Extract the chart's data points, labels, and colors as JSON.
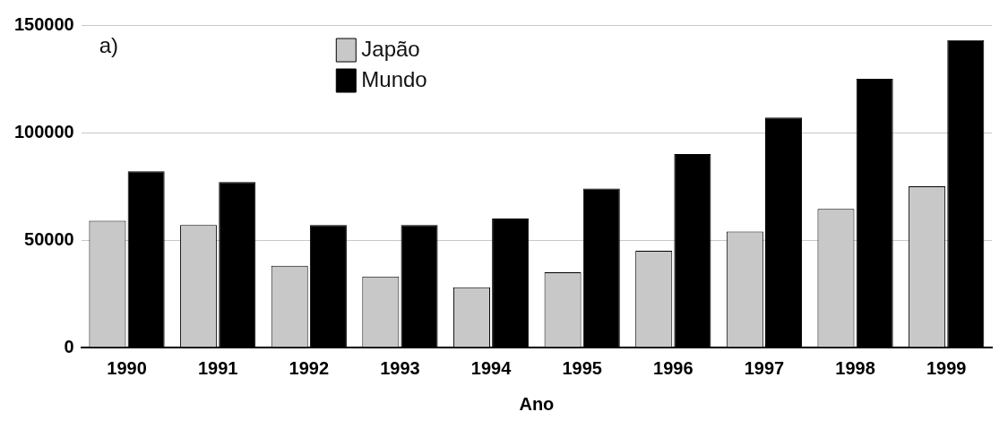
{
  "chart_data": {
    "type": "bar",
    "xlabel": "Ano",
    "annotations": [
      "a)"
    ],
    "categories": [
      "1990",
      "1991",
      "1992",
      "1993",
      "1994",
      "1995",
      "1996",
      "1997",
      "1998",
      "1999"
    ],
    "series": [
      {
        "name": "Japão",
        "color": "#c8c8c8",
        "values": [
          59000,
          57000,
          38000,
          33000,
          28000,
          35000,
          45000,
          54000,
          64500,
          75000
        ]
      },
      {
        "name": "Mundo",
        "color": "#000000",
        "values": [
          82000,
          77000,
          57000,
          57000,
          60000,
          74000,
          90000,
          107000,
          125000,
          143000
        ]
      }
    ],
    "ylim": [
      0,
      150000
    ],
    "yticks": [
      0,
      50000,
      100000,
      150000
    ],
    "grid": "y",
    "legend": "top left"
  }
}
